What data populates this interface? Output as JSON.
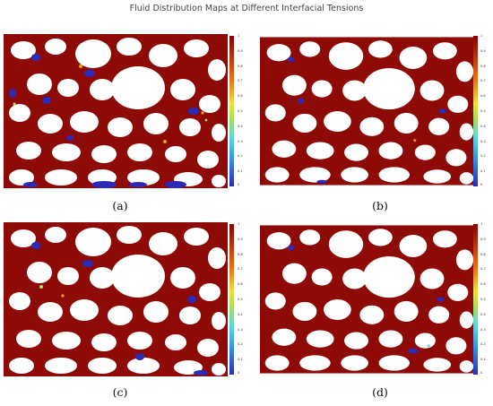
{
  "title": "Fluid Distribution Maps at Different Interfacial Tensions",
  "colorbar": {
    "ticks_a": [
      "1",
      "0.9",
      "0.8",
      "0.7",
      "0.6",
      "0.5",
      "0.4",
      "0.3",
      "0.2",
      "0.1",
      "0"
    ],
    "ticks_b": [
      "1",
      "0.9",
      "0.8",
      "0.7",
      "0.6",
      "0.5",
      "0.4",
      "0.3",
      "0.2",
      "0.1",
      "0"
    ],
    "ticks_c": [
      "1",
      "0.9",
      "0.8",
      "0.7",
      "0.6",
      "0.5",
      "0.4",
      "0.3",
      "0.2",
      "0.1",
      "0"
    ],
    "ticks_d": [
      "1",
      "0.9",
      "0.8",
      "0.7",
      "0.6",
      "0.5",
      "0.4",
      "0.3",
      "0.2",
      "0.1",
      "0"
    ],
    "colors": [
      "#2b2bb8",
      "#3a8fe0",
      "#5fd6e0",
      "#a6e05a",
      "#f0e040",
      "#e86a1a",
      "#a8140e",
      "#8b0000"
    ]
  },
  "panels": [
    {
      "label": "(a)"
    },
    {
      "label": "(b)"
    },
    {
      "label": "(c)"
    },
    {
      "label": "(d)"
    }
  ]
}
